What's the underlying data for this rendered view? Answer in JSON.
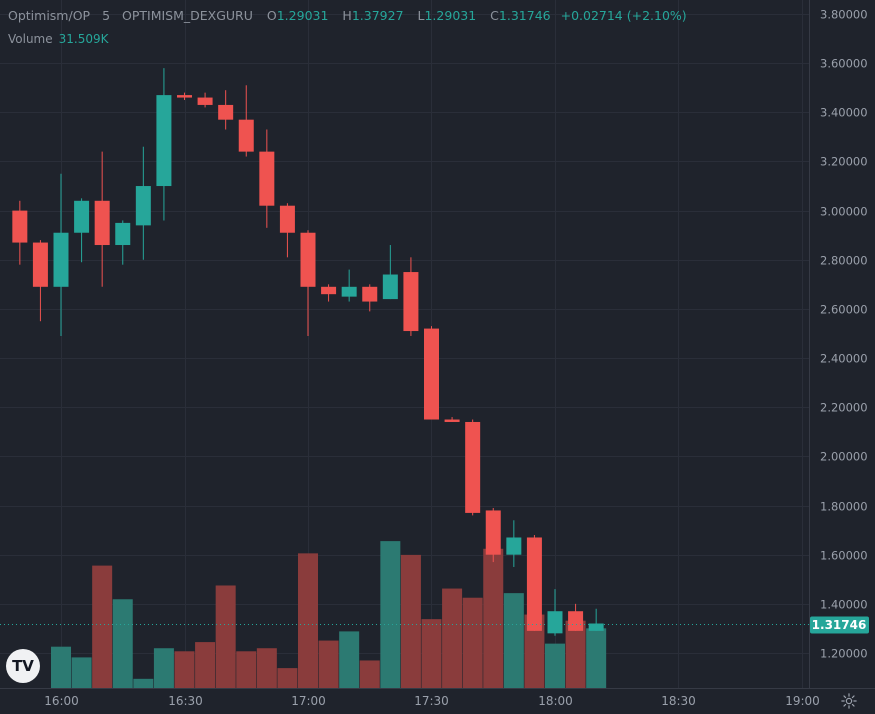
{
  "legend": {
    "symbol": "Optimism/OP",
    "interval": "5",
    "exchange": "OPTIMISM_DEXGURU",
    "o_label": "O",
    "o": "1.29031",
    "h_label": "H",
    "h": "1.37927",
    "l_label": "L",
    "l": "1.29031",
    "c_label": "C",
    "c": "1.31746",
    "change": "+0.02714 (+2.10%)"
  },
  "volume_legend": {
    "label": "Volume",
    "value": "31.509K"
  },
  "logo_text": "TV",
  "colors": {
    "background": "#1f232c",
    "grid": "#2a2e39",
    "up": "#26a69a",
    "down": "#ef5350",
    "up_volume": "#2c7a72",
    "down_volume": "#8a3c3c",
    "text": "#9aa0ab",
    "price_tag": "#26a69a"
  },
  "chart_data": {
    "type": "candlestick",
    "title": "Optimism/OP · 5 · OPTIMISM_DEXGURU",
    "interval_minutes": 5,
    "last_price": "1.31746",
    "y_ticks": [
      "1.20000",
      "1.40000",
      "1.60000",
      "1.80000",
      "2.00000",
      "2.20000",
      "2.40000",
      "2.60000",
      "2.80000",
      "3.00000",
      "3.20000",
      "3.40000",
      "3.60000",
      "3.80000"
    ],
    "x_ticks": [
      {
        "label": "16:00",
        "time": "16:00"
      },
      {
        "label": "16:30",
        "time": "16:30"
      },
      {
        "label": "17:00",
        "time": "17:00"
      },
      {
        "label": "17:30",
        "time": "17:30"
      },
      {
        "label": "18:00",
        "time": "18:00"
      },
      {
        "label": "18:30",
        "time": "18:30"
      },
      {
        "label": "19:00",
        "time": "19:00"
      }
    ],
    "ylim": [
      1.08,
      3.82
    ],
    "xlim": [
      "15:48",
      "19:05"
    ],
    "volume_max": 1.0,
    "candles": [
      {
        "t": "15:50",
        "o": 3.0,
        "h": 3.04,
        "l": 2.78,
        "c": 2.87,
        "v": 0.0
      },
      {
        "t": "15:55",
        "o": 2.87,
        "h": 2.88,
        "l": 2.55,
        "c": 2.69,
        "v": 0.0
      },
      {
        "t": "16:00",
        "o": 2.69,
        "h": 3.15,
        "l": 2.49,
        "c": 2.91,
        "v": 0.27
      },
      {
        "t": "16:05",
        "o": 2.91,
        "h": 3.05,
        "l": 2.79,
        "c": 3.04,
        "v": 0.2
      },
      {
        "t": "16:10",
        "o": 3.04,
        "h": 3.24,
        "l": 2.69,
        "c": 2.86,
        "v": 0.8
      },
      {
        "t": "16:15",
        "o": 2.86,
        "h": 2.96,
        "l": 2.78,
        "c": 2.95,
        "v": 0.58
      },
      {
        "t": "16:20",
        "o": 2.94,
        "h": 3.26,
        "l": 2.8,
        "c": 3.1,
        "v": 0.06
      },
      {
        "t": "16:25",
        "o": 3.1,
        "h": 3.58,
        "l": 2.96,
        "c": 3.47,
        "v": 0.26
      },
      {
        "t": "16:30",
        "o": 3.47,
        "h": 3.48,
        "l": 3.45,
        "c": 3.46,
        "v": 0.24
      },
      {
        "t": "16:35",
        "o": 3.46,
        "h": 3.48,
        "l": 3.42,
        "c": 3.43,
        "v": 0.3
      },
      {
        "t": "16:40",
        "o": 3.43,
        "h": 3.49,
        "l": 3.33,
        "c": 3.37,
        "v": 0.67
      },
      {
        "t": "16:45",
        "o": 3.37,
        "h": 3.51,
        "l": 3.22,
        "c": 3.24,
        "v": 0.24
      },
      {
        "t": "16:50",
        "o": 3.24,
        "h": 3.33,
        "l": 2.93,
        "c": 3.02,
        "v": 0.26
      },
      {
        "t": "16:55",
        "o": 3.02,
        "h": 3.03,
        "l": 2.81,
        "c": 2.91,
        "v": 0.13
      },
      {
        "t": "17:00",
        "o": 2.91,
        "h": 2.92,
        "l": 2.49,
        "c": 2.69,
        "v": 0.88
      },
      {
        "t": "17:05",
        "o": 2.69,
        "h": 2.7,
        "l": 2.63,
        "c": 2.66,
        "v": 0.31
      },
      {
        "t": "17:10",
        "o": 2.65,
        "h": 2.76,
        "l": 2.63,
        "c": 2.69,
        "v": 0.37
      },
      {
        "t": "17:15",
        "o": 2.69,
        "h": 2.7,
        "l": 2.59,
        "c": 2.63,
        "v": 0.18
      },
      {
        "t": "17:20",
        "o": 2.64,
        "h": 2.86,
        "l": 2.64,
        "c": 2.74,
        "v": 0.96
      },
      {
        "t": "17:25",
        "o": 2.75,
        "h": 2.81,
        "l": 2.49,
        "c": 2.51,
        "v": 0.87
      },
      {
        "t": "17:30",
        "o": 2.52,
        "h": 2.53,
        "l": 2.15,
        "c": 2.15,
        "v": 0.45
      },
      {
        "t": "17:35",
        "o": 2.15,
        "h": 2.16,
        "l": 2.14,
        "c": 2.14,
        "v": 0.65
      },
      {
        "t": "17:40",
        "o": 2.14,
        "h": 2.15,
        "l": 1.76,
        "c": 1.77,
        "v": 0.59
      },
      {
        "t": "17:45",
        "o": 1.78,
        "h": 1.79,
        "l": 1.57,
        "c": 1.6,
        "v": 0.91
      },
      {
        "t": "17:50",
        "o": 1.6,
        "h": 1.74,
        "l": 1.55,
        "c": 1.67,
        "v": 0.62
      },
      {
        "t": "17:55",
        "o": 1.67,
        "h": 1.68,
        "l": 1.29,
        "c": 1.29,
        "v": 0.48
      },
      {
        "t": "18:00",
        "o": 1.28,
        "h": 1.46,
        "l": 1.27,
        "c": 1.37,
        "v": 0.29
      },
      {
        "t": "18:05",
        "o": 1.37,
        "h": 1.4,
        "l": 1.29,
        "c": 1.29,
        "v": 0.44
      },
      {
        "t": "18:10",
        "o": 1.29,
        "h": 1.38,
        "l": 1.29,
        "c": 1.32,
        "v": 0.39
      }
    ]
  }
}
